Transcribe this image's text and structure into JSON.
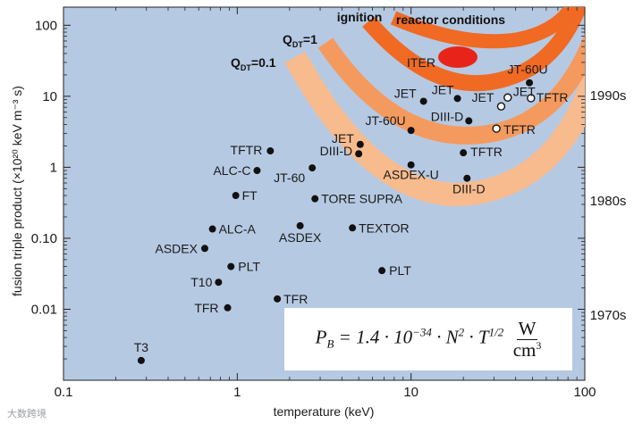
{
  "chart_data": {
    "type": "scatter",
    "xlabel": "temperature (keV)",
    "ylabel": "fusion triple product (×10²⁰ keV m⁻³ s)",
    "xscale": "log",
    "yscale": "log",
    "xlim": [
      0.1,
      100
    ],
    "ylim": [
      0.001,
      180
    ],
    "x_ticks": [
      "0.1",
      "1",
      "10",
      "100"
    ],
    "y_ticks": [
      "0.01",
      "0.10",
      "1",
      "10",
      "100"
    ],
    "grid": false,
    "background_color": "#b6c9e2",
    "points": [
      {
        "label": "T3",
        "x": 0.28,
        "y": 0.0019,
        "filled": true
      },
      {
        "label": "TFR",
        "x": 0.88,
        "y": 0.0105,
        "filled": true
      },
      {
        "label": "T10",
        "x": 0.78,
        "y": 0.024,
        "filled": true
      },
      {
        "label": "PLT",
        "x": 0.92,
        "y": 0.04,
        "filled": true
      },
      {
        "label": "ASDEX",
        "x": 0.65,
        "y": 0.072,
        "filled": true
      },
      {
        "label": "ALC-A",
        "x": 0.72,
        "y": 0.135,
        "filled": true
      },
      {
        "label": "FT",
        "x": 0.98,
        "y": 0.4,
        "filled": true
      },
      {
        "label": "ALC-C",
        "x": 1.3,
        "y": 0.9,
        "filled": true
      },
      {
        "label": "TFTR",
        "x": 1.55,
        "y": 1.7,
        "filled": true
      },
      {
        "label": "TFR",
        "x": 1.7,
        "y": 0.014,
        "filled": true
      },
      {
        "label": "JT-60",
        "x": 2.7,
        "y": 0.98,
        "filled": true
      },
      {
        "label": "TORE SUPRA",
        "x": 2.8,
        "y": 0.36,
        "filled": true
      },
      {
        "label": "ASDEX",
        "x": 2.3,
        "y": 0.15,
        "filled": true
      },
      {
        "label": "TEXTOR",
        "x": 4.6,
        "y": 0.14,
        "filled": true
      },
      {
        "label": "PLT",
        "x": 6.8,
        "y": 0.035,
        "filled": true
      },
      {
        "label": "DIII-D",
        "x": 5.0,
        "y": 1.55,
        "filled": true
      },
      {
        "label": "JET",
        "x": 5.1,
        "y": 2.1,
        "filled": true
      },
      {
        "label": "JT-60U",
        "x": 10.0,
        "y": 3.3,
        "filled": true
      },
      {
        "label": "ASDEX-U",
        "x": 10.0,
        "y": 1.08,
        "filled": true
      },
      {
        "label": "TFTR",
        "x": 20.0,
        "y": 1.6,
        "filled": true
      },
      {
        "label": "DIII-D",
        "x": 21.0,
        "y": 0.7,
        "filled": true
      },
      {
        "label": "JET",
        "x": 11.8,
        "y": 8.5,
        "filled": true
      },
      {
        "label": "JET",
        "x": 18.5,
        "y": 9.3,
        "filled": true
      },
      {
        "label": "DIII-D",
        "x": 21.5,
        "y": 4.5,
        "filled": false,
        "dot_filled": true
      },
      {
        "label": "JT-60U",
        "x": 48.0,
        "y": 15.5,
        "filled": true
      },
      {
        "label": "JET",
        "x": 33.0,
        "y": 7.2,
        "filled": false
      },
      {
        "label": "JET",
        "x": 36.0,
        "y": 9.6,
        "filled": false
      },
      {
        "label": "TFTR",
        "x": 49.0,
        "y": 9.4,
        "filled": false
      },
      {
        "label": "TFTR",
        "x": 31.0,
        "y": 3.5,
        "filled": false
      }
    ],
    "regions": [
      {
        "label": "ignition",
        "color": "#f06a24"
      },
      {
        "label": "reactor conditions",
        "color": "#f06a24"
      },
      {
        "label": "ITER",
        "color": "#e8241a"
      }
    ],
    "band_labels": [
      "Q_DT=1",
      "Q_DT=0.1"
    ],
    "era_labels": [
      "1990s",
      "1980s",
      "1970s"
    ],
    "formula": "P_B = 1.4 · 10⁻³⁴ · N² · T^{1/2} W/cm³",
    "watermark": "大数跨境"
  }
}
